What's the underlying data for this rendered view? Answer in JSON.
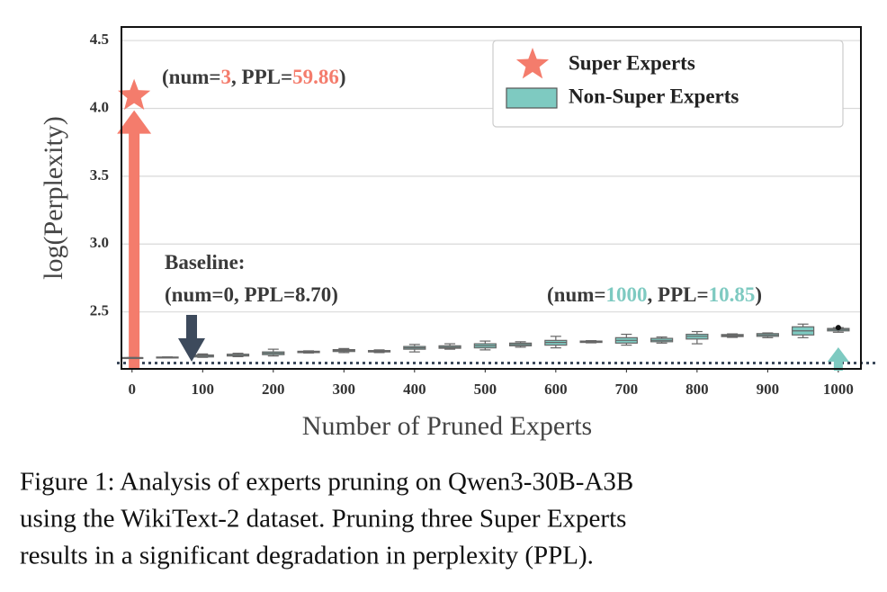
{
  "chart_data": {
    "type": "box",
    "ylabel": "log(Perplexity)",
    "xlabel": "Number of Pruned Experts",
    "xlim": [
      -15,
      1032
    ],
    "ylim": [
      2.08,
      4.6
    ],
    "xticks": [
      0,
      100,
      200,
      300,
      400,
      500,
      600,
      700,
      800,
      900,
      1000
    ],
    "yticks": [
      {
        "value": 2.5,
        "label": "2.5"
      },
      {
        "value": 3.0,
        "label": "3.0"
      },
      {
        "value": 3.5,
        "label": "3.5"
      },
      {
        "value": 4.0,
        "label": "4.0"
      },
      {
        "value": 4.5,
        "label": "4.5"
      }
    ],
    "grid": true,
    "legend": "upper right",
    "baseline": 2.163,
    "series": [
      {
        "name": "Super Experts",
        "type": "scatter",
        "marker": "star",
        "color": "#f47c6c",
        "x": [
          3
        ],
        "values": [
          4.092
        ]
      },
      {
        "name": "Non-Super Experts",
        "type": "box",
        "color": "#7ecac1",
        "x": [
          0,
          50,
          100,
          150,
          200,
          250,
          300,
          350,
          400,
          450,
          500,
          550,
          600,
          650,
          700,
          750,
          800,
          850,
          900,
          950,
          1000
        ],
        "median": [
          2.163,
          2.165,
          2.175,
          2.18,
          2.195,
          2.205,
          2.215,
          2.21,
          2.235,
          2.24,
          2.25,
          2.26,
          2.275,
          2.28,
          2.29,
          2.29,
          2.32,
          2.325,
          2.33,
          2.36,
          2.37
        ],
        "q1": [
          2.163,
          2.163,
          2.168,
          2.175,
          2.185,
          2.2,
          2.208,
          2.205,
          2.225,
          2.232,
          2.235,
          2.25,
          2.255,
          2.275,
          2.27,
          2.28,
          2.3,
          2.318,
          2.32,
          2.33,
          2.36
        ],
        "q3": [
          2.163,
          2.167,
          2.182,
          2.188,
          2.205,
          2.21,
          2.222,
          2.215,
          2.245,
          2.25,
          2.265,
          2.27,
          2.29,
          2.285,
          2.31,
          2.305,
          2.335,
          2.333,
          2.34,
          2.39,
          2.378
        ],
        "whislo": [
          2.163,
          2.162,
          2.165,
          2.17,
          2.175,
          2.197,
          2.2,
          2.2,
          2.205,
          2.225,
          2.22,
          2.24,
          2.235,
          2.272,
          2.255,
          2.27,
          2.265,
          2.312,
          2.31,
          2.31,
          2.35
        ],
        "whishi": [
          2.163,
          2.168,
          2.19,
          2.195,
          2.225,
          2.213,
          2.23,
          2.22,
          2.26,
          2.265,
          2.285,
          2.28,
          2.32,
          2.288,
          2.335,
          2.315,
          2.355,
          2.338,
          2.345,
          2.41,
          2.384
        ]
      }
    ],
    "annotations": [
      {
        "parts": [
          "(num=",
          "3",
          ", PPL=",
          "59.86",
          ")"
        ],
        "highlight_color": "#f47c6c"
      },
      {
        "parts": [
          "Baseline:"
        ]
      },
      {
        "parts": [
          "(num=0, PPL=8.70)"
        ]
      },
      {
        "parts": [
          "(num=",
          "1000",
          ", PPL=",
          "10.85",
          ")"
        ],
        "highlight_color": "#7ecac1"
      }
    ]
  },
  "caption": [
    "Figure 1: Analysis of experts pruning on Qwen3-30B-A3B",
    "using the WikiText-2 dataset. Pruning three Super Experts",
    "results in a significant degradation in perplexity (PPL)."
  ]
}
